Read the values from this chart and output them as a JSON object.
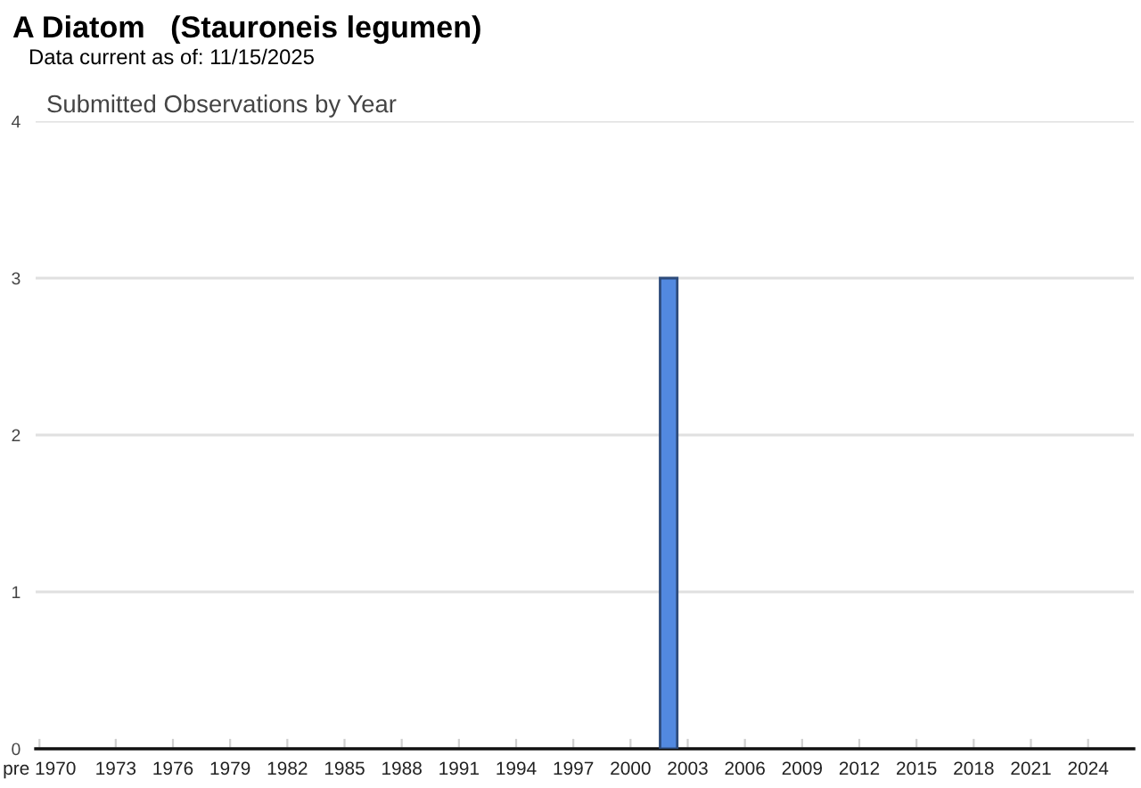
{
  "chart_data": {
    "type": "bar",
    "title": "A Diatom   (Stauroneis legumen)",
    "subtitle": "Data current as of: 11/15/2025",
    "annotations": [
      "Submitted Observations by Year"
    ],
    "x": [
      2002
    ],
    "values": [
      3
    ],
    "color": "#5289e0",
    "xlim": [
      1968.8,
      2026.4
    ],
    "xticks": [
      {
        "value": 1969,
        "label": "pre 1970"
      },
      1973,
      1976,
      1979,
      1982,
      1985,
      1988,
      1991,
      1994,
      1997,
      2000,
      2003,
      2006,
      2009,
      2012,
      2015,
      2018,
      2021,
      2024
    ],
    "ylim": [
      0,
      4
    ],
    "yticks": [
      0,
      1,
      2,
      3,
      4
    ],
    "grid": "y"
  }
}
